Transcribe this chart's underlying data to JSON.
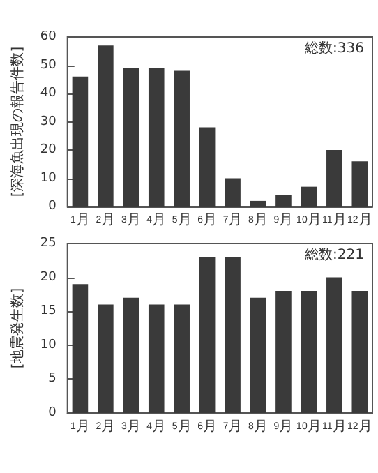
{
  "chart_data": [
    {
      "type": "bar",
      "categories": [
        "1月",
        "2月",
        "3月",
        "4月",
        "5月",
        "6月",
        "7月",
        "8月",
        "9月",
        "10月",
        "11月",
        "12月"
      ],
      "values": [
        46,
        57,
        49,
        49,
        48,
        28,
        10,
        2,
        4,
        7,
        20,
        16
      ],
      "color": "#3a3a3a",
      "ylabel": "[深海魚出現の報告件数]",
      "ylim": [
        0,
        60
      ],
      "yticks": [
        0,
        10,
        20,
        30,
        40,
        50,
        60
      ],
      "annotations": [
        "総数:336"
      ]
    },
    {
      "type": "bar",
      "categories": [
        "1月",
        "2月",
        "3月",
        "4月",
        "5月",
        "6月",
        "7月",
        "8月",
        "9月",
        "10月",
        "11月",
        "12月"
      ],
      "values": [
        19,
        16,
        17,
        16,
        16,
        23,
        23,
        17,
        18,
        18,
        20,
        18
      ],
      "color": "#3a3a3a",
      "ylabel": "[地震発生数]",
      "ylim": [
        0,
        25
      ],
      "yticks": [
        0,
        5,
        10,
        15,
        20,
        25
      ],
      "annotations": [
        "総数:221"
      ]
    }
  ]
}
